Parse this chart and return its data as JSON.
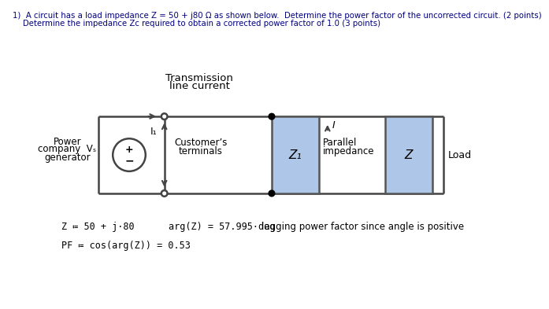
{
  "title_line1": "1)  A circuit has a load impedance Z = 50 + j80 Ω as shown below.  Determine the power factor of the uncorrected circuit. (2 points)",
  "title_line2": "    Determine the impedance Zc required to obtain a corrected power factor of 1.0 (3 points)",
  "transmission_label1": "Transmission",
  "transmission_label2": "line current",
  "load_label": "Load",
  "eq1": "Z ≔ 50 + j·80",
  "eq2": "arg(Z) = 57.995·deg",
  "eq3": "lagging power factor since angle is positive",
  "eq4": "PF ≔ cos(arg(Z)) = 0.53",
  "bg_color": "#ffffff",
  "box_fill": "#aec6e8",
  "box_edge": "#555555",
  "line_color": "#444444",
  "text_color": "#000000",
  "title_color": "#000080"
}
